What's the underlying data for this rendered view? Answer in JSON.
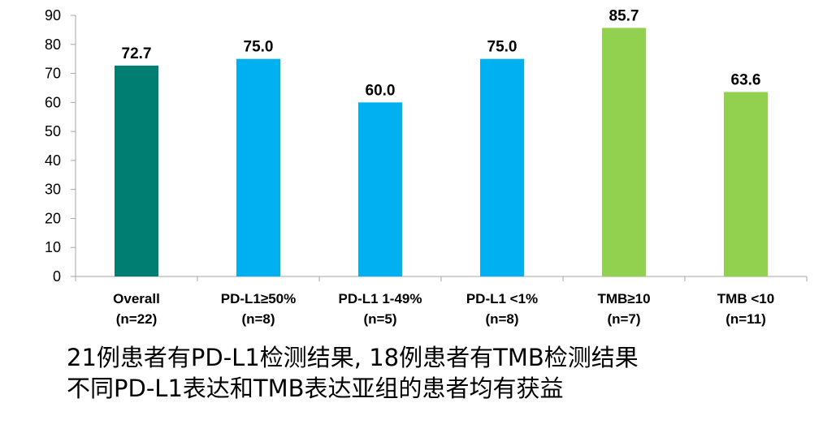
{
  "chart_data": {
    "type": "bar",
    "categories": [
      [
        "Overall",
        "(n=22)"
      ],
      [
        "PD-L1≥50%",
        "(n=8)"
      ],
      [
        "PD-L1 1-49%",
        "(n=5)"
      ],
      [
        "PD-L1 <1%",
        "(n=8)"
      ],
      [
        "TMB≥10",
        "(n=7)"
      ],
      [
        "TMB <10",
        "(n=11)"
      ]
    ],
    "values": [
      72.7,
      75.0,
      60.0,
      75.0,
      85.7,
      63.6
    ],
    "value_labels": [
      "72.7",
      "75.0",
      "60.0",
      "75.0",
      "85.7",
      "63.6"
    ],
    "colors": [
      "#007E72",
      "#00B0F0",
      "#00B0F0",
      "#00B0F0",
      "#92D050",
      "#92D050"
    ],
    "ylim": [
      0,
      90
    ],
    "yticks": [
      0,
      10,
      20,
      30,
      40,
      50,
      60,
      70,
      80,
      90
    ],
    "grid": false,
    "legend": "none"
  },
  "captions": {
    "line1": "21例患者有PD-L1检测结果, 18例患者有TMB检测结果",
    "line2": "不同PD-L1表达和TMB表达亚组的患者均有获益"
  }
}
